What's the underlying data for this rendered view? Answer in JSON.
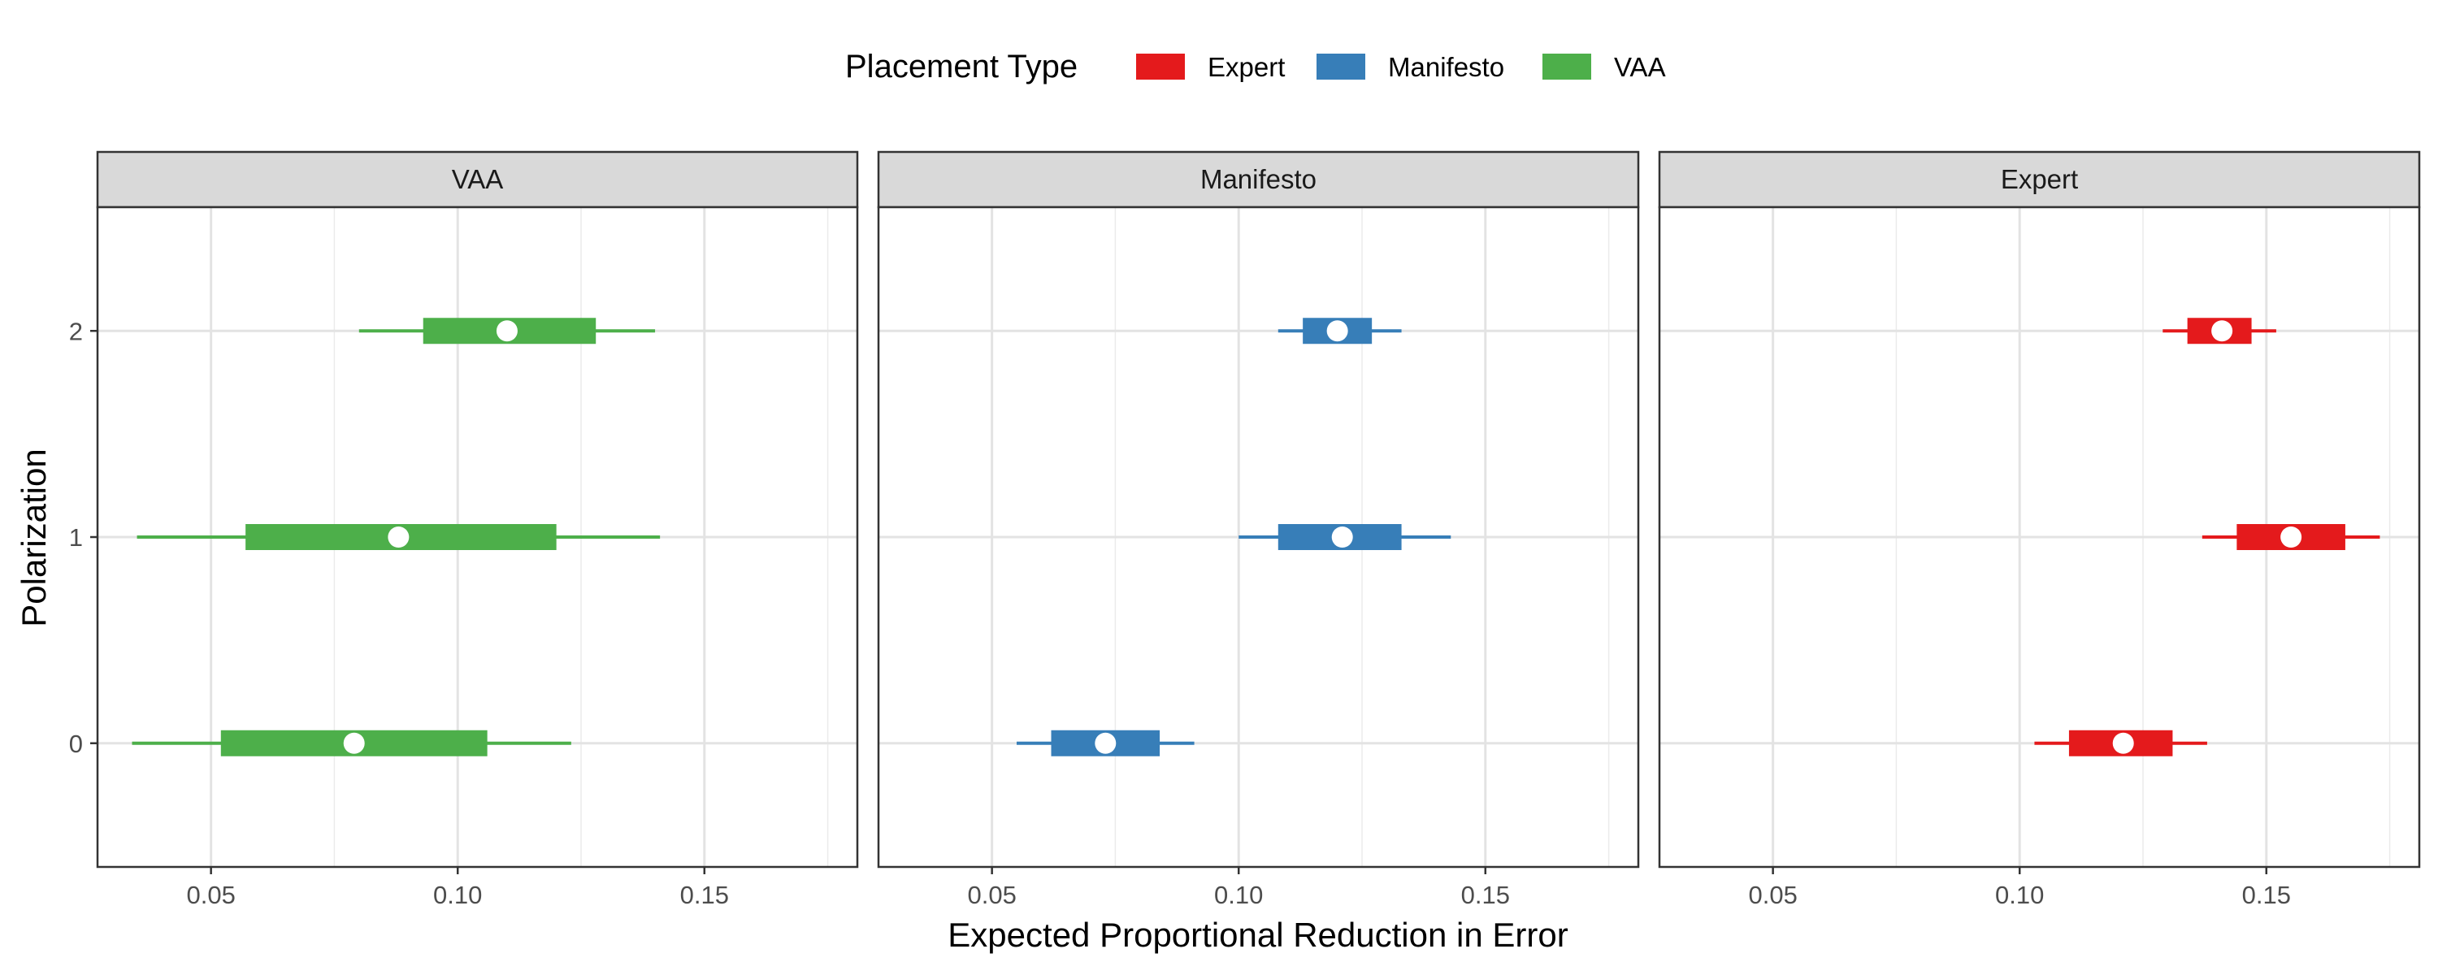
{
  "chart_data": {
    "type": "interval",
    "xlabel": "Expected Proportional Reduction in Error",
    "ylabel": "Polarization",
    "xlim": [
      0.027,
      0.181
    ],
    "ylim": [
      -0.6,
      2.6
    ],
    "x_ticks": [
      0.05,
      0.1,
      0.15
    ],
    "x_tick_labels": [
      "0.05",
      "0.10",
      "0.15"
    ],
    "y_ticks": [
      0,
      1,
      2
    ],
    "y_tick_labels": [
      "0",
      "1",
      "2"
    ],
    "grid": true,
    "legend": {
      "title": "Placement Type",
      "position": "top",
      "entries": [
        {
          "label": "Expert",
          "color": "#E41A1C"
        },
        {
          "label": "Manifesto",
          "color": "#377EB8"
        },
        {
          "label": "VAA",
          "color": "#4DAF4A"
        }
      ]
    },
    "panels": [
      {
        "label": "VAA",
        "color": "#4DAF4A",
        "points": [
          {
            "y": 2,
            "estimate": 0.11,
            "inner": [
              0.093,
              0.128
            ],
            "outer": [
              0.08,
              0.14
            ]
          },
          {
            "y": 1,
            "estimate": 0.088,
            "inner": [
              0.057,
              0.12
            ],
            "outer": [
              0.035,
              0.141
            ]
          },
          {
            "y": 0,
            "estimate": 0.079,
            "inner": [
              0.052,
              0.106
            ],
            "outer": [
              0.034,
              0.123
            ]
          }
        ]
      },
      {
        "label": "Manifesto",
        "color": "#377EB8",
        "points": [
          {
            "y": 2,
            "estimate": 0.12,
            "inner": [
              0.113,
              0.127
            ],
            "outer": [
              0.108,
              0.133
            ]
          },
          {
            "y": 1,
            "estimate": 0.121,
            "inner": [
              0.108,
              0.133
            ],
            "outer": [
              0.1,
              0.143
            ]
          },
          {
            "y": 0,
            "estimate": 0.073,
            "inner": [
              0.062,
              0.084
            ],
            "outer": [
              0.055,
              0.091
            ]
          }
        ]
      },
      {
        "label": "Expert",
        "color": "#E41A1C",
        "points": [
          {
            "y": 2,
            "estimate": 0.141,
            "inner": [
              0.134,
              0.147
            ],
            "outer": [
              0.129,
              0.152
            ]
          },
          {
            "y": 1,
            "estimate": 0.155,
            "inner": [
              0.144,
              0.166
            ],
            "outer": [
              0.137,
              0.173
            ]
          },
          {
            "y": 0,
            "estimate": 0.121,
            "inner": [
              0.11,
              0.131
            ],
            "outer": [
              0.103,
              0.138
            ]
          }
        ]
      }
    ]
  }
}
